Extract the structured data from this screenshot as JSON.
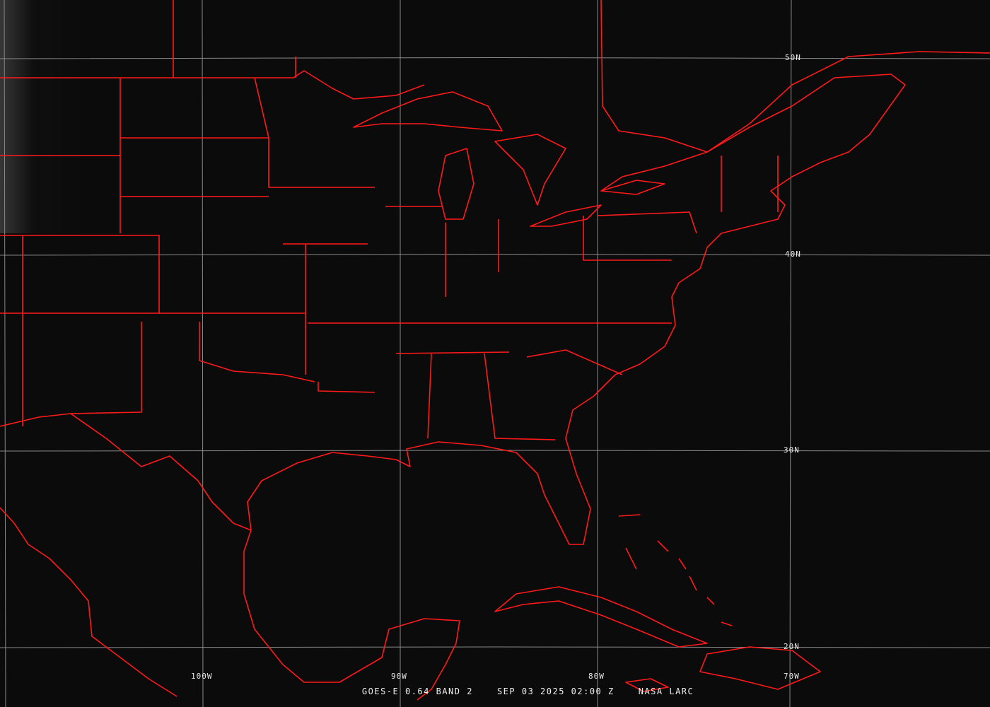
{
  "image": {
    "satellite": "GOES-E 0.64 BAND 2",
    "datetime": "SEP 03 2025 02:00 Z",
    "credit": "NASA LARC"
  },
  "grid": {
    "latitude_labels": [
      "50N",
      "40N",
      "30N",
      "20N"
    ],
    "longitude_labels": [
      "100W",
      "90W",
      "80W",
      "70W"
    ]
  },
  "colors": {
    "background": "#0b0b0b",
    "boundaries": "#ff1a1a",
    "gridlines": "#8a8a8a",
    "labels": "#e8e8e8"
  }
}
